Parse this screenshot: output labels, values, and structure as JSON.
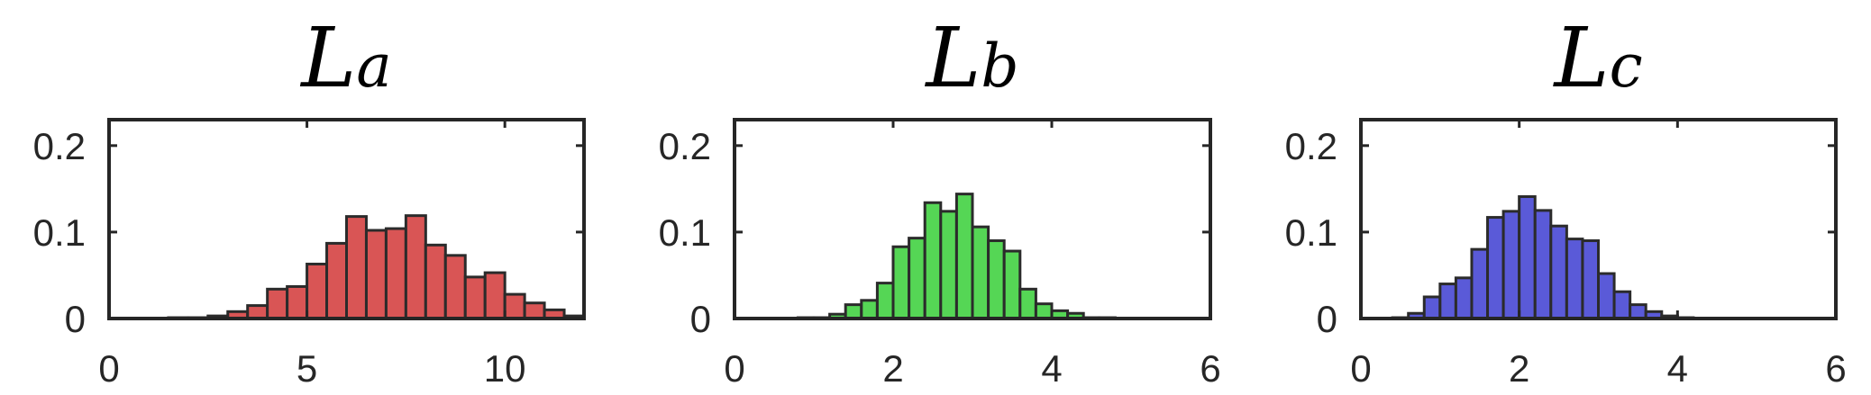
{
  "chart_data": [
    {
      "type": "bar",
      "title": "L_a",
      "title_main": "L",
      "title_sub": "a",
      "color": "#d95555",
      "bin_width": 0.5,
      "bin_centers": [
        1.75,
        2.25,
        2.75,
        3.25,
        3.75,
        4.25,
        4.75,
        5.25,
        5.75,
        6.25,
        6.75,
        7.25,
        7.75,
        8.25,
        8.75,
        9.25,
        9.75,
        10.25
      ],
      "values": [
        0.001,
        0.001,
        0.003,
        0.008,
        0.015,
        0.034,
        0.037,
        0.063,
        0.087,
        0.118,
        0.102,
        0.104,
        0.119,
        0.085,
        0.073,
        0.048,
        0.053,
        0.028
      ],
      "extra_values": [
        0.018,
        0.01,
        0.003
      ],
      "xlim": [
        0,
        12
      ],
      "ylim": [
        0,
        0.23
      ],
      "xticks": [
        0,
        5,
        10
      ],
      "xtick_labels": [
        "0",
        "5",
        "10"
      ],
      "yticks": [
        0,
        0.1,
        0.2
      ],
      "ytick_labels": [
        "0",
        "0.1",
        "0.2"
      ],
      "grid": false
    },
    {
      "type": "bar",
      "title": "L_b",
      "title_main": "L",
      "title_sub": "b",
      "color": "#55d655",
      "bin_width": 0.2,
      "bin_centers": [
        0.9,
        1.1,
        1.3,
        1.5,
        1.7,
        1.9,
        2.1,
        2.3,
        2.5,
        2.7,
        2.9,
        3.1,
        3.3,
        3.5,
        3.7,
        3.9,
        4.1,
        4.3,
        4.5,
        4.7
      ],
      "values": [
        0.001,
        0.001,
        0.005,
        0.016,
        0.021,
        0.041,
        0.083,
        0.093,
        0.134,
        0.124,
        0.144,
        0.106,
        0.09,
        0.078,
        0.034,
        0.017,
        0.009,
        0.006,
        0.001,
        0.001
      ],
      "xlim": [
        0,
        6
      ],
      "ylim": [
        0,
        0.23
      ],
      "xticks": [
        0,
        2,
        4,
        6
      ],
      "xtick_labels": [
        "0",
        "2",
        "4",
        "6"
      ],
      "yticks": [
        0,
        0.1,
        0.2
      ],
      "ytick_labels": [
        "0",
        "0.1",
        "0.2"
      ],
      "grid": false
    },
    {
      "type": "bar",
      "title": "L_c",
      "title_main": "L",
      "title_sub": "c",
      "color": "#5a5ad8",
      "bin_width": 0.2,
      "bin_centers": [
        0.5,
        0.7,
        0.9,
        1.1,
        1.3,
        1.5,
        1.7,
        1.9,
        2.1,
        2.3,
        2.5,
        2.7,
        2.9,
        3.1,
        3.3,
        3.5,
        3.7,
        3.9,
        4.1
      ],
      "values": [
        0.001,
        0.006,
        0.025,
        0.04,
        0.047,
        0.08,
        0.117,
        0.124,
        0.141,
        0.125,
        0.107,
        0.092,
        0.09,
        0.052,
        0.031,
        0.016,
        0.008,
        0.003,
        0.001
      ],
      "xlim": [
        0,
        6
      ],
      "ylim": [
        0,
        0.23
      ],
      "xticks": [
        0,
        2,
        4,
        6
      ],
      "xtick_labels": [
        "0",
        "2",
        "4",
        "6"
      ],
      "yticks": [
        0,
        0.1,
        0.2
      ],
      "ytick_labels": [
        "0",
        "0.1",
        "0.2"
      ],
      "grid": false
    }
  ]
}
